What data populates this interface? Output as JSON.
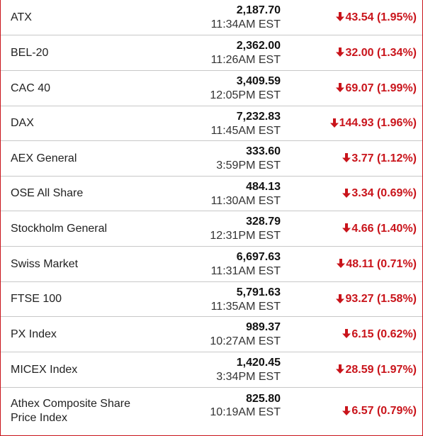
{
  "indices": [
    {
      "name": "ATX",
      "price": "2,187.70",
      "time": "11:34AM EST",
      "change": "43.54 (1.95%)",
      "direction": "down-arrow-icon"
    },
    {
      "name": "BEL-20",
      "price": "2,362.00",
      "time": "11:26AM EST",
      "change": "32.00 (1.34%)",
      "direction": "down-arrow-icon"
    },
    {
      "name": "CAC 40",
      "price": "3,409.59",
      "time": "12:05PM EST",
      "change": "69.07 (1.99%)",
      "direction": "down-arrow-icon"
    },
    {
      "name": "DAX",
      "price": "7,232.83",
      "time": "11:45AM EST",
      "change": "144.93 (1.96%)",
      "direction": "down-arrow-icon"
    },
    {
      "name": "AEX General",
      "price": "333.60",
      "time": "3:59PM EST",
      "change": "3.77 (1.12%)",
      "direction": "down-arrow-icon"
    },
    {
      "name": "OSE All Share",
      "price": "484.13",
      "time": "11:30AM EST",
      "change": "3.34 (0.69%)",
      "direction": "down-arrow-icon"
    },
    {
      "name": "Stockholm General",
      "price": "328.79",
      "time": "12:31PM EST",
      "change": "4.66 (1.40%)",
      "direction": "down-arrow-icon"
    },
    {
      "name": "Swiss Market",
      "price": "6,697.63",
      "time": "11:31AM EST",
      "change": "48.11 (0.71%)",
      "direction": "down-arrow-icon"
    },
    {
      "name": "FTSE 100",
      "price": "5,791.63",
      "time": "11:35AM EST",
      "change": "93.27 (1.58%)",
      "direction": "down-arrow-icon"
    },
    {
      "name": "PX Index",
      "price": "989.37",
      "time": "10:27AM EST",
      "change": "6.15 (0.62%)",
      "direction": "down-arrow-icon"
    },
    {
      "name": "MICEX Index",
      "price": "1,420.45",
      "time": "3:34PM EST",
      "change": "28.59 (1.97%)",
      "direction": "down-arrow-icon"
    },
    {
      "name_line1": "Athex Composite Share",
      "name_line2": "Price Index",
      "price": "825.80",
      "time": "10:19AM EST",
      "change": "6.57 (0.79%)",
      "direction": "down-arrow-icon"
    }
  ],
  "colors": {
    "border": "#c9141b",
    "down": "#c9141b",
    "divider": "#c8c8c8",
    "text": "#222222"
  }
}
